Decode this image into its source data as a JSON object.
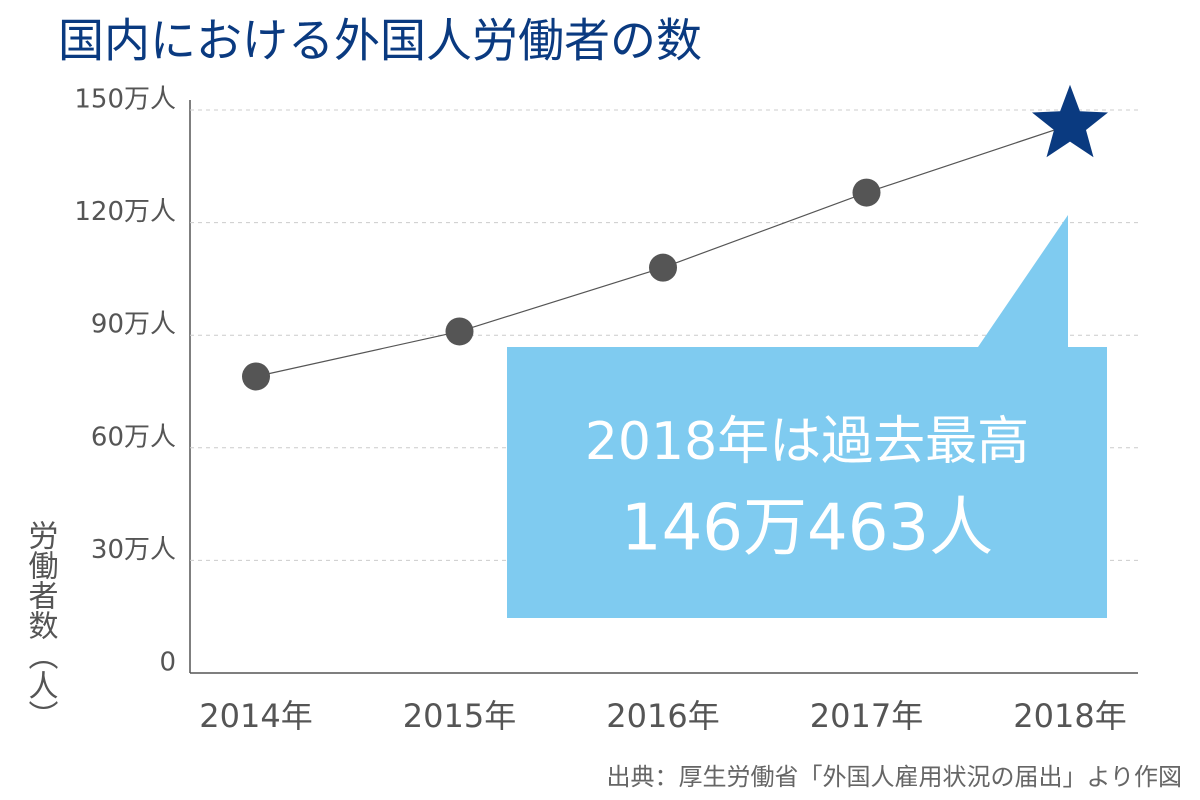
{
  "chart_data": {
    "type": "line",
    "title": "国内における外国人労働者の数",
    "y_label": "労働者数（人）",
    "source": "出典：厚生労働省「外国人雇用状況の届出」より作図",
    "categories": [
      "2014年",
      "2015年",
      "2016年",
      "2017年",
      "2018年"
    ],
    "values": [
      790000,
      910000,
      1080000,
      1280000,
      1460463
    ],
    "value_labels": [
      null,
      null,
      null,
      null,
      "146万463人"
    ],
    "annotation": "2018年は過去最高",
    "color": "#555555",
    "line_color": "#555555",
    "highlight_color": "#0a3a80",
    "callout_color": "#7fcbf0",
    "ylim": [
      0,
      1500000
    ],
    "yticks": [
      0,
      {
        "value": 300000,
        "label": "30万人"
      },
      {
        "value": 600000,
        "label": "60万人"
      },
      {
        "value": 900000,
        "label": "90万人"
      },
      {
        "value": 1200000,
        "label": "120万人"
      },
      {
        "value": 1500000,
        "label": "150万人"
      }
    ],
    "grid": true
  }
}
